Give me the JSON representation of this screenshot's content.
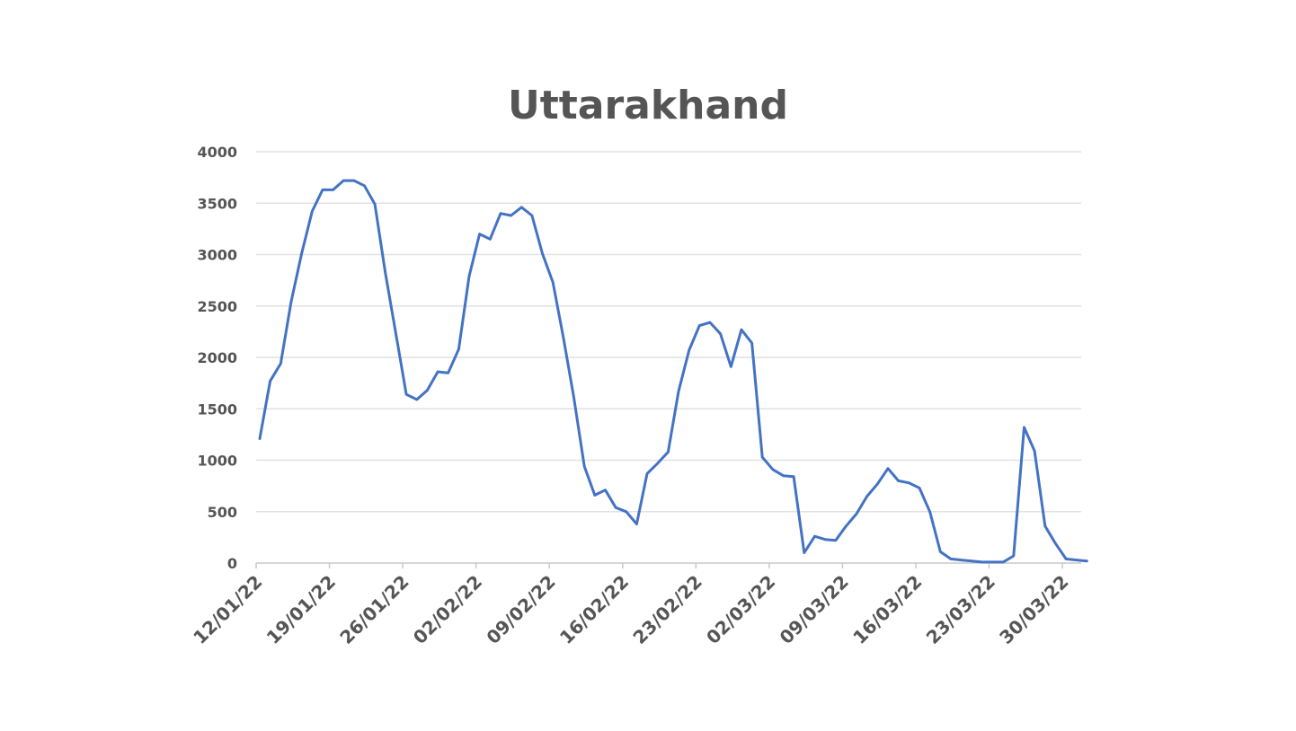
{
  "chart_data": {
    "type": "line",
    "title": "Uttarakhand",
    "xlabel": "",
    "ylabel": "",
    "ylim": [
      0,
      4000
    ],
    "y_ticks": [
      0,
      500,
      1000,
      1500,
      2000,
      2500,
      3000,
      3500,
      4000
    ],
    "x_tick_labels": [
      "12/01/22",
      "19/01/22",
      "26/01/22",
      "02/02/22",
      "09/02/22",
      "16/02/22",
      "23/02/22",
      "02/03/22",
      "09/03/22",
      "16/03/22",
      "23/03/22",
      "30/03/22"
    ],
    "grid": true,
    "legend": false,
    "line_color": "#4472C4",
    "series": [
      {
        "x": [
          "12/01/22",
          "13/01/22",
          "14/01/22",
          "15/01/22",
          "16/01/22",
          "17/01/22",
          "18/01/22",
          "19/01/22",
          "20/01/22",
          "21/01/22",
          "22/01/22",
          "23/01/22",
          "24/01/22",
          "25/01/22",
          "26/01/22",
          "27/01/22",
          "28/01/22",
          "29/01/22",
          "30/01/22",
          "31/01/22",
          "01/02/22",
          "02/02/22",
          "03/02/22",
          "04/02/22",
          "05/02/22",
          "06/02/22",
          "07/02/22",
          "08/02/22",
          "09/02/22",
          "10/02/22",
          "11/02/22",
          "12/02/22",
          "13/02/22",
          "14/02/22",
          "15/02/22",
          "16/02/22",
          "17/02/22",
          "18/02/22",
          "19/02/22",
          "20/02/22",
          "21/02/22",
          "22/02/22",
          "23/02/22",
          "24/02/22",
          "25/02/22",
          "26/02/22",
          "27/02/22",
          "28/02/22",
          "01/03/22",
          "02/03/22",
          "03/03/22",
          "04/03/22",
          "05/03/22",
          "06/03/22",
          "07/03/22",
          "08/03/22",
          "09/03/22",
          "10/03/22",
          "11/03/22",
          "12/03/22",
          "13/03/22",
          "14/03/22",
          "15/03/22",
          "16/03/22",
          "17/03/22",
          "18/03/22",
          "19/03/22",
          "20/03/22",
          "21/03/22",
          "22/03/22",
          "23/03/22",
          "24/03/22",
          "25/03/22",
          "26/03/22",
          "27/03/22",
          "28/03/22",
          "29/03/22",
          "30/03/22",
          "31/03/22",
          "01/04/22"
        ],
        "values": [
          1210,
          1770,
          1940,
          2540,
          3010,
          3420,
          3630,
          3630,
          3720,
          3720,
          3670,
          3490,
          2820,
          2230,
          1640,
          1590,
          1680,
          1860,
          1850,
          2080,
          2790,
          3200,
          3150,
          3400,
          3380,
          3460,
          3380,
          3010,
          2730,
          2190,
          1610,
          940,
          660,
          710,
          540,
          500,
          380,
          870,
          970,
          1080,
          1670,
          2070,
          2310,
          2340,
          2230,
          1910,
          2270,
          2140,
          1030,
          910,
          850,
          840,
          100,
          260,
          230,
          220,
          360,
          480,
          650,
          770,
          920,
          800,
          780,
          730,
          500,
          110,
          40,
          30,
          20,
          10,
          10,
          10,
          70,
          1320,
          1090,
          360,
          190,
          40,
          30,
          20
        ]
      }
    ]
  }
}
